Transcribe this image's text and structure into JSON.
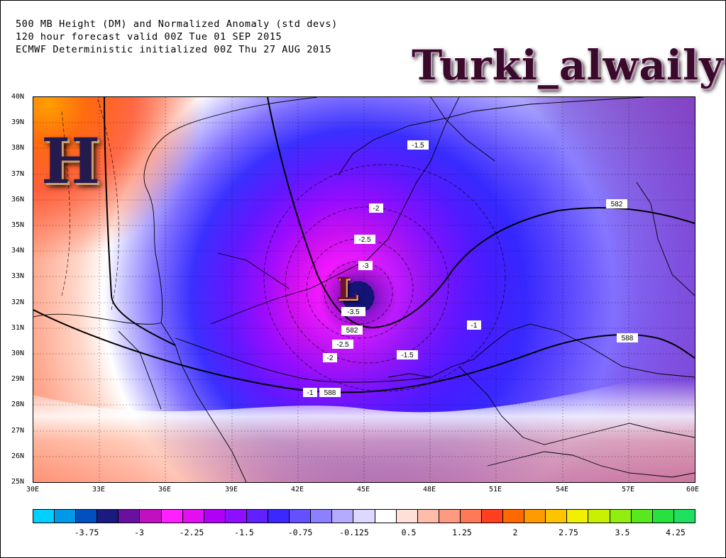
{
  "titles": [
    "500 MB Height (DM) and Normalized Anomaly (std devs)",
    "120 hour forecast valid 00Z Tue 01 SEP 2015",
    "ECMWF Deterministic initialized 00Z Thu 27 AUG 2015"
  ],
  "watermark": "Turki_alwaily",
  "symbols": {
    "high": "H",
    "low": "L"
  },
  "lat_labels": [
    "40N",
    "39N",
    "38N",
    "37N",
    "36N",
    "35N",
    "34N",
    "33N",
    "32N",
    "31N",
    "30N",
    "29N",
    "28N",
    "27N",
    "26N",
    "25N"
  ],
  "lon_labels": [
    "30E",
    "33E",
    "36E",
    "39E",
    "42E",
    "45E",
    "48E",
    "51E",
    "54E",
    "57E",
    "60E"
  ],
  "contour_labels": [
    "-1.5",
    "582",
    "-2",
    "-2.5",
    "-3",
    "-3.5",
    "582",
    "-2.5",
    "-2",
    "-1.5",
    "-1",
    "588",
    "-1",
    "588"
  ],
  "colorbar": {
    "colors": [
      "#00d0ff",
      "#0098e8",
      "#0050c0",
      "#1a1a80",
      "#6a10a0",
      "#c010c0",
      "#ff20ff",
      "#e010f0",
      "#b000f8",
      "#8c10ff",
      "#6020ff",
      "#3c28ff",
      "#6450ff",
      "#8c80ff",
      "#b4aaff",
      "#dcd8ff",
      "#ffffff",
      "#ffe0d8",
      "#ffbcaa",
      "#ff9a82",
      "#ff7858",
      "#ff4020",
      "#ff6a00",
      "#ff9a00",
      "#ffc400",
      "#f0f000",
      "#c8f000",
      "#90ee10",
      "#58e820",
      "#28e040",
      "#20e060"
    ],
    "labels": [
      "-3.75",
      "-3",
      "-2.25",
      "-1.5",
      "-0.75",
      "-0.125",
      "0.5",
      "1.25",
      "2",
      "2.75",
      "3.5",
      "4.25"
    ]
  }
}
